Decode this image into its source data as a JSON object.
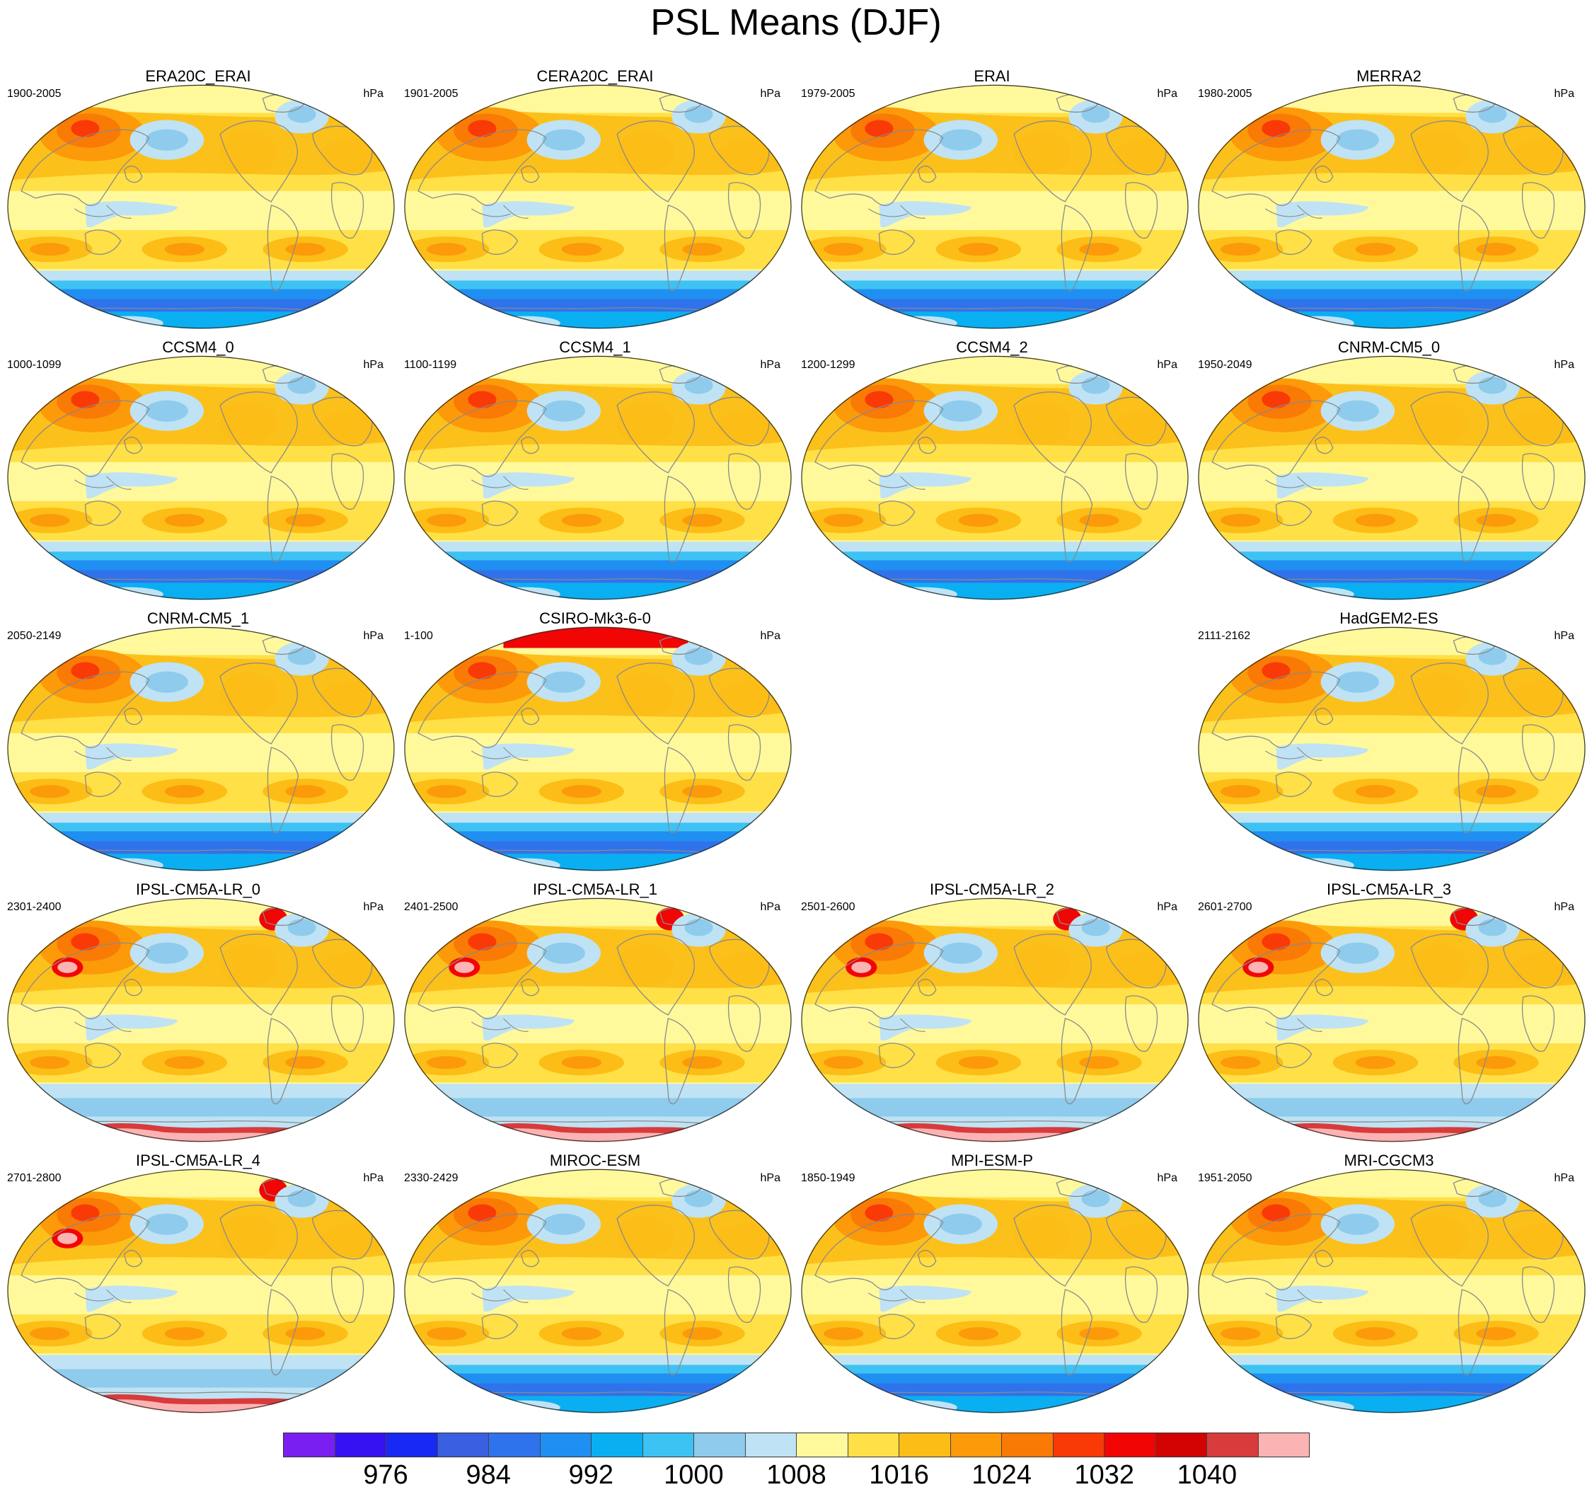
{
  "title": "PSL Means (DJF)",
  "units": "hPa",
  "colorbar": {
    "colors": [
      "#7a1ff2",
      "#3611f2",
      "#1729f2",
      "#3a5fe0",
      "#2f73ec",
      "#1f8ff2",
      "#0aaff2",
      "#3dc2f4",
      "#8fcbec",
      "#bfe3f4",
      "#fff99c",
      "#ffe046",
      "#fcbd16",
      "#fc9a0a",
      "#fa7a06",
      "#fa3a06",
      "#f20505",
      "#d20303",
      "#d83b3b",
      "#fcb3b3"
    ],
    "labels": [
      "976",
      "984",
      "992",
      "1000",
      "1008",
      "1016",
      "1024",
      "1032",
      "1040"
    ]
  },
  "panels": [
    {
      "name": "ERA20C_ERAI",
      "years": "1900-2005",
      "row": 0,
      "col": 0
    },
    {
      "name": "CERA20C_ERAI",
      "years": "1901-2005",
      "row": 0,
      "col": 1
    },
    {
      "name": "ERAI",
      "years": "1979-2005",
      "row": 0,
      "col": 2
    },
    {
      "name": "MERRA2",
      "years": "1980-2005",
      "row": 0,
      "col": 3
    },
    {
      "name": "CCSM4_0",
      "years": "1000-1099",
      "row": 1,
      "col": 0
    },
    {
      "name": "CCSM4_1",
      "years": "1100-1199",
      "row": 1,
      "col": 1
    },
    {
      "name": "CCSM4_2",
      "years": "1200-1299",
      "row": 1,
      "col": 2
    },
    {
      "name": "CNRM-CM5_0",
      "years": "1950-2049",
      "row": 1,
      "col": 3
    },
    {
      "name": "CNRM-CM5_1",
      "years": "2050-2149",
      "row": 2,
      "col": 0
    },
    {
      "name": "CSIRO-Mk3-6-0",
      "years": "1-100",
      "row": 2,
      "col": 1
    },
    {
      "name": "HadGEM2-ES",
      "years": "2111-2162",
      "row": 2,
      "col": 3
    },
    {
      "name": "IPSL-CM5A-LR_0",
      "years": "2301-2400",
      "row": 3,
      "col": 0
    },
    {
      "name": "IPSL-CM5A-LR_1",
      "years": "2401-2500",
      "row": 3,
      "col": 1
    },
    {
      "name": "IPSL-CM5A-LR_2",
      "years": "2501-2600",
      "row": 3,
      "col": 2
    },
    {
      "name": "IPSL-CM5A-LR_3",
      "years": "2601-2700",
      "row": 3,
      "col": 3
    },
    {
      "name": "IPSL-CM5A-LR_4",
      "years": "2701-2800",
      "row": 4,
      "col": 0
    },
    {
      "name": "MIROC-ESM",
      "years": "2330-2429",
      "row": 4,
      "col": 1
    },
    {
      "name": "MPI-ESM-P",
      "years": "1850-1949",
      "row": 4,
      "col": 2
    },
    {
      "name": "MRI-CGCM3",
      "years": "1951-2050",
      "row": 4,
      "col": 3
    }
  ]
}
